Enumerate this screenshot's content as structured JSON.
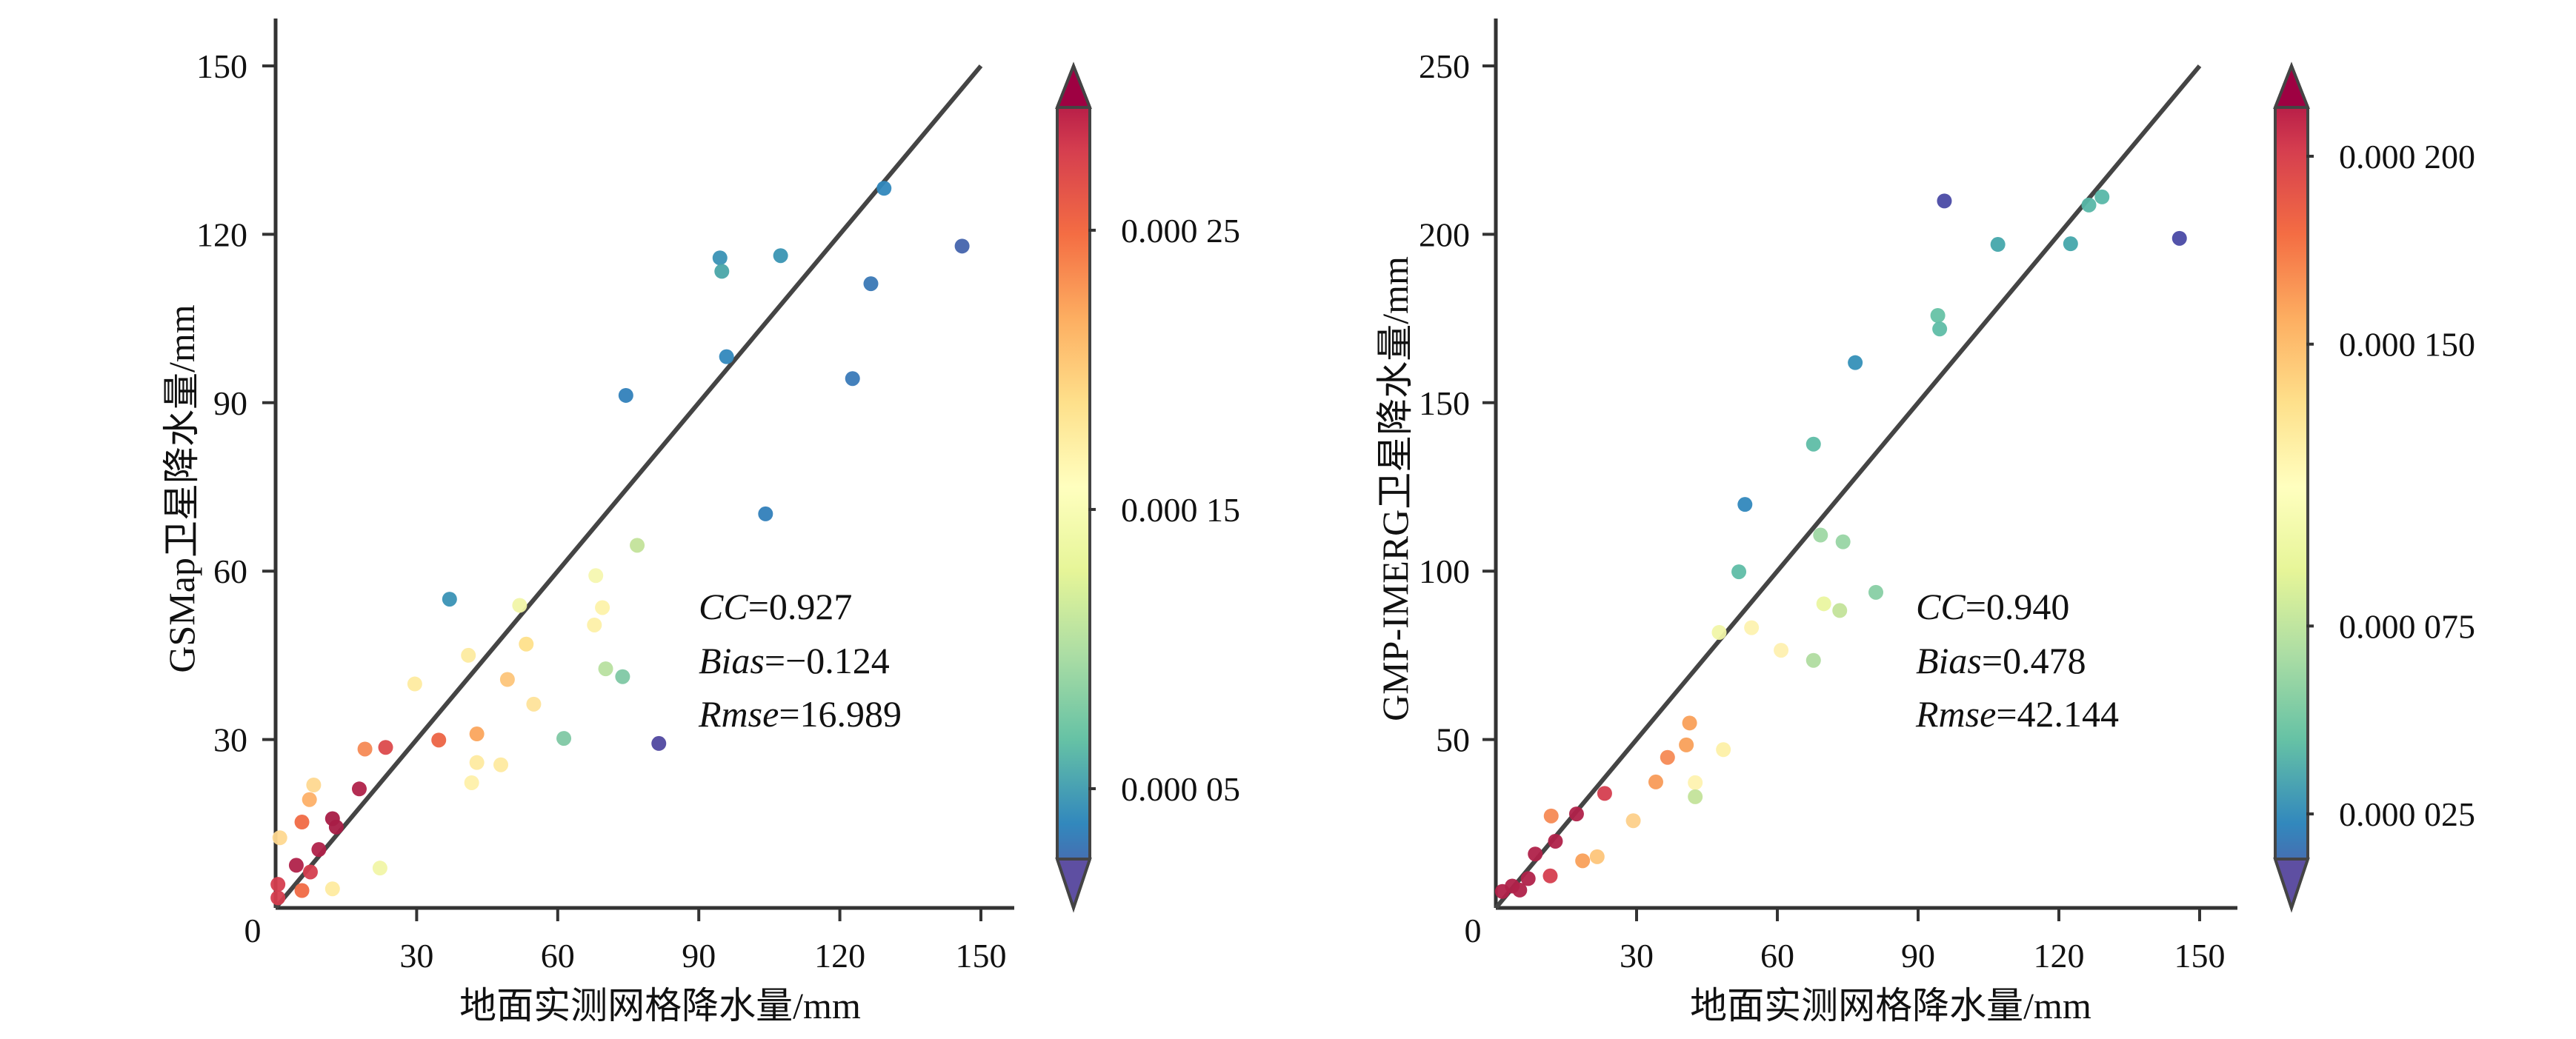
{
  "chart_data": [
    {
      "type": "scatter",
      "xlabel": "地面实测网格降水量/mm",
      "ylabel": "GSMap卫星降水量/mm",
      "xlim": [
        0,
        157
      ],
      "ylim": [
        0,
        157
      ],
      "xticks": [
        0,
        30,
        60,
        90,
        120,
        150
      ],
      "yticks": [
        30,
        60,
        90,
        120,
        150
      ],
      "origin_label": "0",
      "one_to_one_line": [
        [
          0,
          0
        ],
        [
          150,
          150
        ]
      ],
      "stats": [
        {
          "name": "CC",
          "value": "=0.927"
        },
        {
          "name": "Bias",
          "value": "=−0.124"
        },
        {
          "name": "Rmse",
          "value": "=16.989"
        }
      ],
      "colorbar": {
        "range": [
          2.48e-05,
          0.000294
        ],
        "ticks": [
          {
            "value": 0.00025,
            "label": "0.000 25"
          },
          {
            "value": 0.00015,
            "label": "0.000 15"
          },
          {
            "value": 5e-05,
            "label": "0.000 05"
          }
        ],
        "colormap": [
          "#5e4fa2",
          "#3288bd",
          "#66c2a5",
          "#abdda4",
          "#e6f598",
          "#ffffbf",
          "#fee08b",
          "#fdae61",
          "#f46d43",
          "#d53e4f",
          "#9e0142"
        ]
      },
      "points": [
        {
          "x": 129.4,
          "y": 128.2,
          "c": "#3288bd"
        },
        {
          "x": 146,
          "y": 117.9,
          "c": "#4464ad"
        },
        {
          "x": 94.5,
          "y": 115.8,
          "c": "#3a92b5"
        },
        {
          "x": 94.9,
          "y": 113.4,
          "c": "#4aa5a8"
        },
        {
          "x": 107.4,
          "y": 116.2,
          "c": "#3a95b3"
        },
        {
          "x": 126.6,
          "y": 111.2,
          "c": "#3a78b5"
        },
        {
          "x": 95.9,
          "y": 98.2,
          "c": "#3288bd"
        },
        {
          "x": 122.7,
          "y": 94.3,
          "c": "#3a7ab8"
        },
        {
          "x": 74.5,
          "y": 91.3,
          "c": "#3281bb"
        },
        {
          "x": 104.2,
          "y": 70.2,
          "c": "#3280bb"
        },
        {
          "x": 76.9,
          "y": 64.6,
          "c": "#c3e39a"
        },
        {
          "x": 68.1,
          "y": 59.2,
          "c": "#f6f7b0"
        },
        {
          "x": 37,
          "y": 55,
          "c": "#3a92b5"
        },
        {
          "x": 51.9,
          "y": 53.9,
          "c": "#f1f5a8"
        },
        {
          "x": 69.5,
          "y": 53.5,
          "c": "#fdf2aa"
        },
        {
          "x": 67.8,
          "y": 50.4,
          "c": "#fdf0a8"
        },
        {
          "x": 53.3,
          "y": 47,
          "c": "#fee08b"
        },
        {
          "x": 41,
          "y": 45,
          "c": "#fdeba0"
        },
        {
          "x": 70.2,
          "y": 42.6,
          "c": "#b8e0a0"
        },
        {
          "x": 73.8,
          "y": 41.2,
          "c": "#80c8a4"
        },
        {
          "x": 49.3,
          "y": 40.7,
          "c": "#fdc57a"
        },
        {
          "x": 29.6,
          "y": 39.9,
          "c": "#feeba0"
        },
        {
          "x": 54.9,
          "y": 36.3,
          "c": "#fee39a"
        },
        {
          "x": 61.3,
          "y": 30.2,
          "c": "#80c8a4"
        },
        {
          "x": 81.5,
          "y": 29.3,
          "c": "#5048a0"
        },
        {
          "x": 34.7,
          "y": 29.9,
          "c": "#ec6445"
        },
        {
          "x": 42.8,
          "y": 31,
          "c": "#fba55d"
        },
        {
          "x": 19,
          "y": 28.3,
          "c": "#f68a55"
        },
        {
          "x": 23.4,
          "y": 28.6,
          "c": "#dc4a4c"
        },
        {
          "x": 42.8,
          "y": 25.9,
          "c": "#feeaa0"
        },
        {
          "x": 47.9,
          "y": 25.5,
          "c": "#feeaa0"
        },
        {
          "x": 41.7,
          "y": 22.3,
          "c": "#fef0aa"
        },
        {
          "x": 17.8,
          "y": 21.2,
          "c": "#b0224a"
        },
        {
          "x": 8.1,
          "y": 21.9,
          "c": "#fed890"
        },
        {
          "x": 7.2,
          "y": 19.3,
          "c": "#fdb068"
        },
        {
          "x": 5.6,
          "y": 15.3,
          "c": "#f06a45"
        },
        {
          "x": 12.1,
          "y": 15.9,
          "c": "#a81c46"
        },
        {
          "x": 12.9,
          "y": 14.4,
          "c": "#a81c46"
        },
        {
          "x": 0.9,
          "y": 12.5,
          "c": "#fed890"
        },
        {
          "x": 9.2,
          "y": 10.4,
          "c": "#b0224a"
        },
        {
          "x": 4.4,
          "y": 7.6,
          "c": "#b0224a"
        },
        {
          "x": 7.4,
          "y": 6.4,
          "c": "#d53e4f"
        },
        {
          "x": 22.2,
          "y": 7.1,
          "c": "#f1f5a8"
        },
        {
          "x": 5.6,
          "y": 3.1,
          "c": "#f06a45"
        },
        {
          "x": 12.1,
          "y": 3.4,
          "c": "#feeba0"
        },
        {
          "x": 0.5,
          "y": 4.2,
          "c": "#d53e4f"
        },
        {
          "x": 0.5,
          "y": 1.8,
          "c": "#d53e4f"
        }
      ]
    },
    {
      "type": "scatter",
      "xlabel": "地面实测网格降水量/mm",
      "ylabel": "GMP-IMERG卫星降水量/mm",
      "xlim": [
        0,
        157
      ],
      "ylim": [
        0,
        262
      ],
      "xticks": [
        0,
        30,
        60,
        90,
        120,
        150
      ],
      "yticks": [
        50,
        100,
        150,
        200,
        250
      ],
      "origin_label": "0",
      "one_to_one_line": [
        [
          0,
          0
        ],
        [
          150,
          250
        ]
      ],
      "stats": [
        {
          "name": "CC",
          "value": "=0.940"
        },
        {
          "name": "Bias",
          "value": "=0.478"
        },
        {
          "name": "Rmse",
          "value": "=42.144"
        }
      ],
      "colorbar": {
        "range": [
          1.3e-05,
          0.000213
        ],
        "ticks": [
          {
            "value": 0.0002,
            "label": "0.000 200"
          },
          {
            "value": 0.00015,
            "label": "0.000 150"
          },
          {
            "value": 7.5e-05,
            "label": "0.000 075"
          },
          {
            "value": 2.5e-05,
            "label": "0.000 025"
          }
        ],
        "colormap": [
          "#5e4fa2",
          "#3288bd",
          "#66c2a5",
          "#abdda4",
          "#e6f598",
          "#ffffbf",
          "#fee08b",
          "#fdae61",
          "#f46d43",
          "#d53e4f",
          "#9e0142"
        ]
      },
      "points": [
        {
          "x": 95.6,
          "y": 209.9,
          "c": "#4a4aa5"
        },
        {
          "x": 129.2,
          "y": 211.1,
          "c": "#58b7a8"
        },
        {
          "x": 126.4,
          "y": 208.7,
          "c": "#58b7a8"
        },
        {
          "x": 145.7,
          "y": 198.8,
          "c": "#4a4aa5"
        },
        {
          "x": 107,
          "y": 197,
          "c": "#44a7ab"
        },
        {
          "x": 122.5,
          "y": 197.2,
          "c": "#44a7ab"
        },
        {
          "x": 94.2,
          "y": 175.9,
          "c": "#66c2a5"
        },
        {
          "x": 94.6,
          "y": 171.9,
          "c": "#5fbda6"
        },
        {
          "x": 76.6,
          "y": 161.9,
          "c": "#3590b8"
        },
        {
          "x": 67.7,
          "y": 137.7,
          "c": "#5fbda6"
        },
        {
          "x": 53.1,
          "y": 119.8,
          "c": "#3288bd"
        },
        {
          "x": 69.2,
          "y": 110.7,
          "c": "#9fd8a4"
        },
        {
          "x": 74,
          "y": 108.7,
          "c": "#98d5a4"
        },
        {
          "x": 51.8,
          "y": 99.8,
          "c": "#5fbda6"
        },
        {
          "x": 81,
          "y": 93.7,
          "c": "#88cfa4"
        },
        {
          "x": 69.9,
          "y": 90.3,
          "c": "#eaf6a0"
        },
        {
          "x": 73.3,
          "y": 88.3,
          "c": "#c3e39a"
        },
        {
          "x": 47.6,
          "y": 81.8,
          "c": "#f1f5a8"
        },
        {
          "x": 54.5,
          "y": 83.2,
          "c": "#fdf2b0"
        },
        {
          "x": 60.8,
          "y": 76.5,
          "c": "#fef0b0"
        },
        {
          "x": 67.7,
          "y": 73.5,
          "c": "#b0dca0"
        },
        {
          "x": 41.3,
          "y": 54.9,
          "c": "#f9a05a"
        },
        {
          "x": 40.6,
          "y": 48.4,
          "c": "#f9a05a"
        },
        {
          "x": 48.5,
          "y": 47,
          "c": "#fdf0a8"
        },
        {
          "x": 36.6,
          "y": 44.7,
          "c": "#f68a55"
        },
        {
          "x": 34.1,
          "y": 37.4,
          "c": "#f89b58"
        },
        {
          "x": 42.5,
          "y": 37.2,
          "c": "#fef2b0"
        },
        {
          "x": 42.5,
          "y": 33,
          "c": "#c3e39a"
        },
        {
          "x": 23.2,
          "y": 34,
          "c": "#d53e4f"
        },
        {
          "x": 29.3,
          "y": 25.9,
          "c": "#fdd08a"
        },
        {
          "x": 11.8,
          "y": 27.3,
          "c": "#f68a55"
        },
        {
          "x": 17.2,
          "y": 27.9,
          "c": "#b0224a"
        },
        {
          "x": 12.7,
          "y": 19.8,
          "c": "#b0224a"
        },
        {
          "x": 8.4,
          "y": 16,
          "c": "#b0224a"
        },
        {
          "x": 21.6,
          "y": 15.2,
          "c": "#fdc57a"
        },
        {
          "x": 18.5,
          "y": 14,
          "c": "#f9a05a"
        },
        {
          "x": 11.6,
          "y": 9.5,
          "c": "#d53e4f"
        },
        {
          "x": 6.9,
          "y": 8.7,
          "c": "#b0224a"
        },
        {
          "x": 5.1,
          "y": 5.3,
          "c": "#b0224a"
        },
        {
          "x": 1.4,
          "y": 4.9,
          "c": "#b0224a"
        },
        {
          "x": 3.5,
          "y": 6.5,
          "c": "#b0224a"
        }
      ]
    }
  ]
}
